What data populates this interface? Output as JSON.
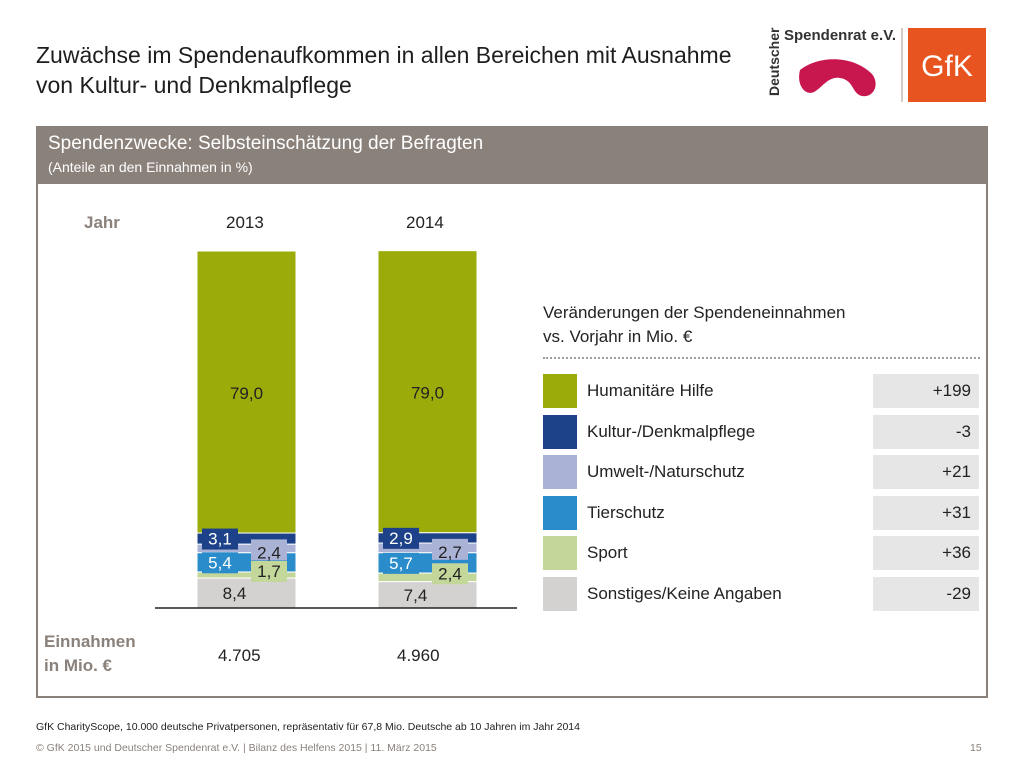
{
  "title": "Zuwächse im Spendenaufkommen in allen Bereichen mit Ausnahme von Kultur- und Denkmalpflege",
  "logos": {
    "spendenrat_line1": "Deutscher",
    "spendenrat_line2": "Spendenrat e.V.",
    "gfk": "GfK",
    "gfk_color": "#e8541f",
    "spendenrat_color": "#c8174f"
  },
  "panel": {
    "title": "Spendenzwecke: Selbsteinschätzung der Befragten",
    "subtitle": "(Anteile an den Einnahmen in %)",
    "header_color": "#8b817b"
  },
  "labels": {
    "year": "Jahr",
    "income_line1": "Einnahmen",
    "income_line2": "in Mio. €"
  },
  "income": [
    "4.705",
    "4.960"
  ],
  "legend_title_line1": "Veränderungen der Spendeneinnahmen",
  "legend_title_line2": "vs. Vorjahr in Mio. €",
  "chart_data": {
    "type": "bar",
    "stacked": true,
    "categories": [
      "2013",
      "2014"
    ],
    "series": [
      {
        "name": "Sonstiges/Keine Angaben",
        "values": [
          8.4,
          7.4
        ],
        "color": "#d3d2d1",
        "change": "-29",
        "label_color": "#222222"
      },
      {
        "name": "Sport",
        "values": [
          1.7,
          2.4
        ],
        "color": "#c3d79b",
        "change": "+36",
        "label_color": "#222222"
      },
      {
        "name": "Tierschutz",
        "values": [
          5.4,
          5.7
        ],
        "color": "#2a8ccb",
        "change": "+31",
        "label_color": "#ffffff"
      },
      {
        "name": "Umwelt-/Naturschutz",
        "values": [
          2.4,
          2.7
        ],
        "color": "#aab2d6",
        "change": "+21",
        "label_color": "#222222"
      },
      {
        "name": "Kultur-/Denkmalpflege",
        "values": [
          3.1,
          2.9
        ],
        "color": "#1d4289",
        "change": "-3",
        "label_color": "#ffffff"
      },
      {
        "name": "Humanitäre Hilfe",
        "values": [
          79.0,
          79.0
        ],
        "color": "#9aab0a",
        "change": "+199",
        "label_color": "#222222"
      }
    ],
    "value_labels": [
      [
        "8,4",
        "1,7",
        "5,4",
        "2,4",
        "3,1",
        "79,0"
      ],
      [
        "7,4",
        "2,4",
        "5,7",
        "2,7",
        "2,9",
        "79,0"
      ]
    ],
    "legend_order": [
      "Humanitäre Hilfe",
      "Kultur-/Denkmalpflege",
      "Umwelt-/Naturschutz",
      "Tierschutz",
      "Sport",
      "Sonstiges/Keine Angaben"
    ],
    "ylim": [
      0,
      100
    ]
  },
  "footnote": "GfK CharityScope, 10.000 deutsche Privatpersonen, repräsentativ für 67,8 Mio. Deutsche ab 10 Jahren im Jahr 2014",
  "footer": "© GfK 2015 und Deutscher Spendenrat e.V. | Bilanz des Helfens 2015 | 11. März 2015",
  "page_number": "15"
}
